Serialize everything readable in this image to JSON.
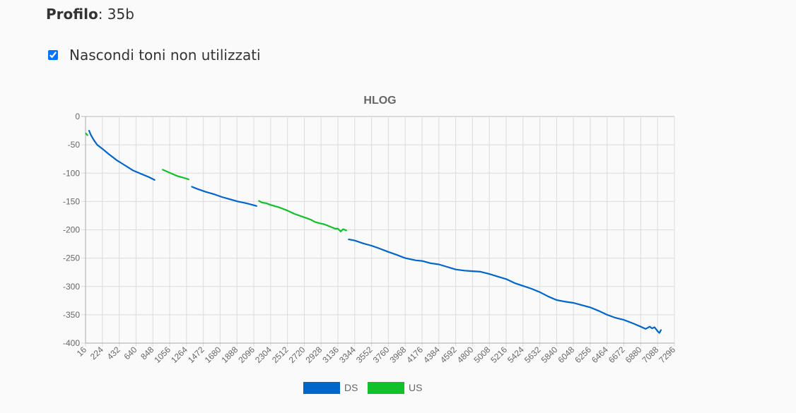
{
  "profile": {
    "label": "Profilo",
    "sep": ":",
    "value": "35b"
  },
  "options": {
    "hide_unused_label": "Nascondi toni non utilizzati",
    "hide_unused_checked": true
  },
  "chart_data": {
    "type": "line",
    "title": "HLOG",
    "xlabel": "",
    "ylabel": "",
    "xlim": [
      16,
      7296
    ],
    "ylim": [
      -400,
      0
    ],
    "x_ticks": [
      "16",
      "224",
      "432",
      "640",
      "848",
      "1056",
      "1264",
      "1472",
      "1680",
      "1888",
      "2096",
      "2304",
      "2512",
      "2720",
      "2928",
      "3136",
      "3344",
      "3552",
      "3760",
      "3968",
      "4176",
      "4384",
      "4592",
      "4800",
      "5008",
      "5216",
      "5424",
      "5632",
      "5840",
      "6048",
      "6256",
      "6464",
      "6672",
      "6880",
      "7088",
      "7296"
    ],
    "y_ticks": [
      "0",
      "-50",
      "-100",
      "-150",
      "-200",
      "-250",
      "-300",
      "-350",
      "-400"
    ],
    "grid": true,
    "legend_position": "bottom",
    "series": [
      {
        "name": "DS",
        "color": "#0066cc",
        "segments": [
          [
            [
              60,
              -25
            ],
            [
              80,
              -32
            ],
            [
              120,
              -42
            ],
            [
              160,
              -50
            ],
            [
              224,
              -57
            ],
            [
              300,
              -66
            ],
            [
              400,
              -77
            ],
            [
              500,
              -86
            ],
            [
              600,
              -95
            ],
            [
              700,
              -101
            ],
            [
              800,
              -107
            ],
            [
              870,
              -112
            ]
          ],
          [
            [
              1330,
              -124
            ],
            [
              1400,
              -128
            ],
            [
              1500,
              -133
            ],
            [
              1600,
              -137
            ],
            [
              1700,
              -142
            ],
            [
              1800,
              -146
            ],
            [
              1900,
              -150
            ],
            [
              2000,
              -153
            ],
            [
              2080,
              -156
            ],
            [
              2130,
              -158
            ]
          ],
          [
            [
              3270,
              -217
            ],
            [
              3344,
              -219
            ],
            [
              3450,
              -224
            ],
            [
              3552,
              -228
            ],
            [
              3650,
              -233
            ],
            [
              3760,
              -239
            ],
            [
              3860,
              -244
            ],
            [
              3968,
              -250
            ],
            [
              4100,
              -254
            ],
            [
              4176,
              -255
            ],
            [
              4280,
              -259
            ],
            [
              4384,
              -261
            ],
            [
              4500,
              -266
            ],
            [
              4592,
              -270
            ],
            [
              4700,
              -272
            ],
            [
              4800,
              -273
            ],
            [
              4900,
              -274
            ],
            [
              5008,
              -278
            ],
            [
              5100,
              -282
            ],
            [
              5216,
              -287
            ],
            [
              5320,
              -294
            ],
            [
              5424,
              -299
            ],
            [
              5530,
              -304
            ],
            [
              5632,
              -310
            ],
            [
              5740,
              -318
            ],
            [
              5840,
              -324
            ],
            [
              5950,
              -327
            ],
            [
              6048,
              -329
            ],
            [
              6150,
              -333
            ],
            [
              6256,
              -337
            ],
            [
              6360,
              -343
            ],
            [
              6464,
              -350
            ],
            [
              6560,
              -355
            ],
            [
              6672,
              -359
            ],
            [
              6780,
              -365
            ],
            [
              6880,
              -371
            ],
            [
              6940,
              -375
            ],
            [
              6990,
              -371
            ],
            [
              7020,
              -374
            ],
            [
              7050,
              -372
            ],
            [
              7088,
              -379
            ],
            [
              7110,
              -382
            ],
            [
              7130,
              -377
            ]
          ]
        ]
      },
      {
        "name": "US",
        "color": "#11c12a",
        "segments": [
          [
            [
              20,
              -30
            ],
            [
              40,
              -33
            ]
          ],
          [
            [
              970,
              -94
            ],
            [
              1050,
              -99
            ],
            [
              1100,
              -102
            ],
            [
              1150,
              -105
            ],
            [
              1200,
              -107
            ],
            [
              1250,
              -109
            ],
            [
              1290,
              -111
            ]
          ],
          [
            [
              2160,
              -149
            ],
            [
              2200,
              -152
            ],
            [
              2250,
              -153
            ],
            [
              2304,
              -156
            ],
            [
              2400,
              -160
            ],
            [
              2512,
              -166
            ],
            [
              2600,
              -172
            ],
            [
              2720,
              -178
            ],
            [
              2800,
              -182
            ],
            [
              2850,
              -186
            ],
            [
              2900,
              -188
            ],
            [
              2928,
              -189
            ],
            [
              2960,
              -190
            ],
            [
              3000,
              -192
            ],
            [
              3050,
              -195
            ],
            [
              3100,
              -198
            ],
            [
              3136,
              -198
            ],
            [
              3170,
              -203
            ],
            [
              3200,
              -199
            ],
            [
              3240,
              -201
            ]
          ]
        ]
      }
    ]
  }
}
